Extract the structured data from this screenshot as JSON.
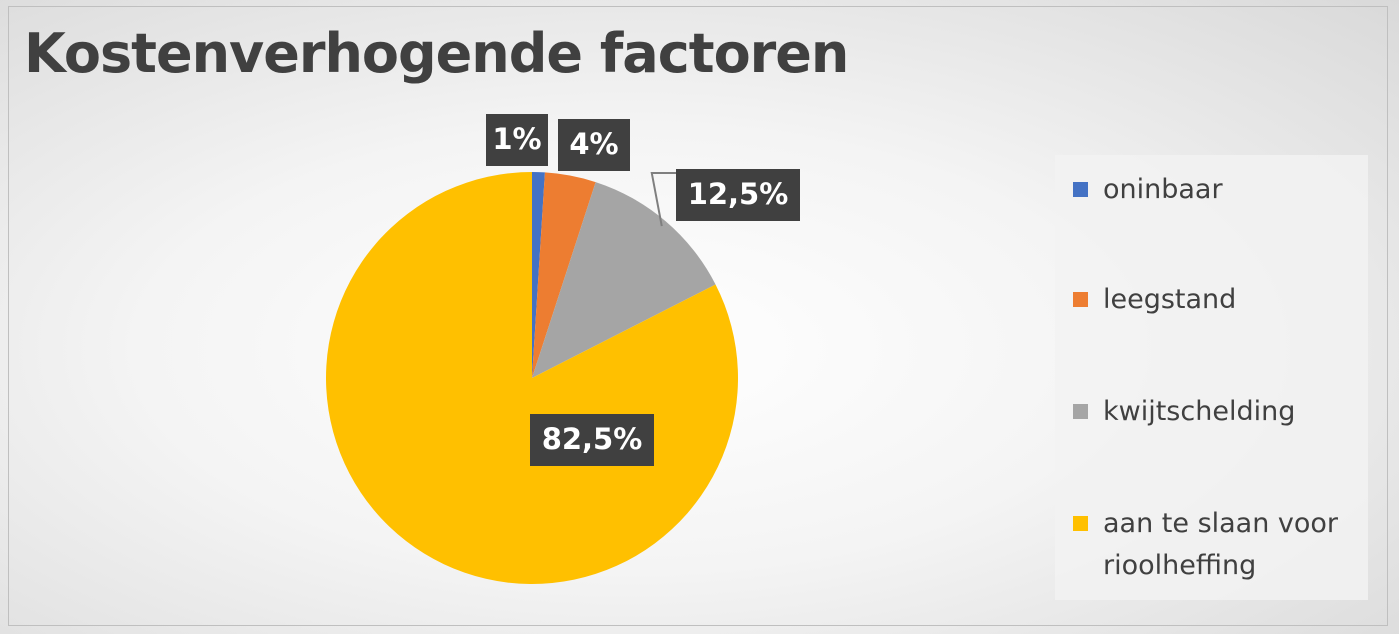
{
  "chart_data": {
    "type": "pie",
    "title": "Kostenverhogende factoren",
    "categories": [
      "oninbaar",
      "leegstand",
      "kwijtschelding",
      "aan te slaan voor rioolheffing"
    ],
    "values": [
      1,
      4,
      12.5,
      82.5
    ],
    "value_labels": [
      "1%",
      "4%",
      "12,5%",
      "82,5%"
    ],
    "colors": [
      "#4472c4",
      "#ed7d31",
      "#a5a5a5",
      "#ffc000"
    ],
    "legend": "right"
  }
}
